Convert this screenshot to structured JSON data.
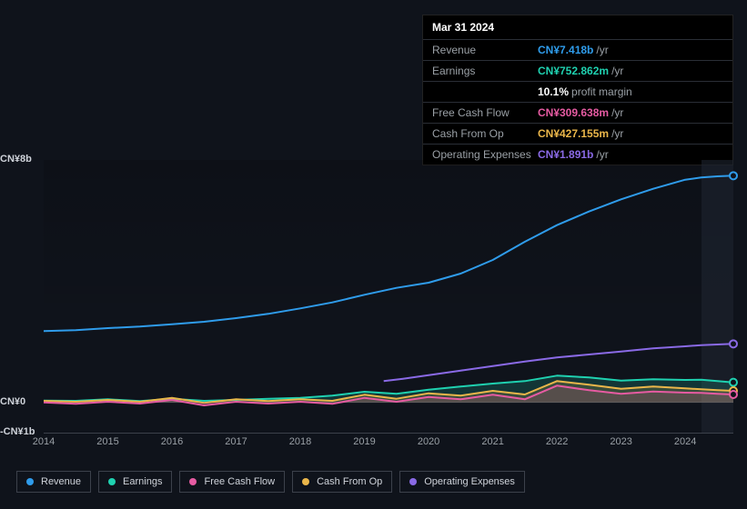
{
  "tooltip": {
    "date": "Mar 31 2024",
    "rows": [
      {
        "label": "Revenue",
        "value": "CN¥7.418b",
        "unit": "/yr",
        "color": "#2f9ceb"
      },
      {
        "label": "Earnings",
        "value": "CN¥752.862m",
        "unit": "/yr",
        "color": "#1fd1b0"
      },
      {
        "label": "",
        "value": "10.1%",
        "unit": "profit margin",
        "color": "#ffffff"
      },
      {
        "label": "Free Cash Flow",
        "value": "CN¥309.638m",
        "unit": "/yr",
        "color": "#e65ba2"
      },
      {
        "label": "Cash From Op",
        "value": "CN¥427.155m",
        "unit": "/yr",
        "color": "#eab64a"
      },
      {
        "label": "Operating Expenses",
        "value": "CN¥1.891b",
        "unit": "/yr",
        "color": "#8a6ae6"
      }
    ]
  },
  "chart": {
    "ymin": -1,
    "ymax": 8,
    "ylabels": [
      {
        "text": "CN¥8b",
        "val": 8
      },
      {
        "text": "CN¥0",
        "val": 0
      },
      {
        "text": "-CN¥1b",
        "val": -1
      }
    ],
    "xstart": 2014.0,
    "xend": 2024.75,
    "xticks": [
      2014,
      2015,
      2016,
      2017,
      2018,
      2019,
      2020,
      2021,
      2022,
      2023,
      2024
    ],
    "future_from": 2024.25,
    "background": "#0f131b",
    "grid_color": "#3c414b",
    "series": [
      {
        "name": "revenue",
        "label": "Revenue",
        "color": "#2f9ceb",
        "width": 2,
        "fill": false,
        "points": [
          [
            2014.0,
            2.35
          ],
          [
            2014.5,
            2.38
          ],
          [
            2015.0,
            2.45
          ],
          [
            2015.5,
            2.5
          ],
          [
            2016.0,
            2.58
          ],
          [
            2016.5,
            2.66
          ],
          [
            2017.0,
            2.78
          ],
          [
            2017.5,
            2.92
          ],
          [
            2018.0,
            3.1
          ],
          [
            2018.5,
            3.3
          ],
          [
            2019.0,
            3.55
          ],
          [
            2019.5,
            3.78
          ],
          [
            2020.0,
            3.95
          ],
          [
            2020.5,
            4.25
          ],
          [
            2021.0,
            4.7
          ],
          [
            2021.5,
            5.3
          ],
          [
            2022.0,
            5.85
          ],
          [
            2022.5,
            6.3
          ],
          [
            2023.0,
            6.7
          ],
          [
            2023.5,
            7.05
          ],
          [
            2024.0,
            7.35
          ],
          [
            2024.25,
            7.42
          ],
          [
            2024.5,
            7.46
          ],
          [
            2024.75,
            7.48
          ]
        ]
      },
      {
        "name": "opex",
        "label": "Operating Expenses",
        "color": "#8a6ae6",
        "width": 2,
        "fill": false,
        "points": [
          [
            2019.3,
            0.7
          ],
          [
            2019.6,
            0.78
          ],
          [
            2020.0,
            0.9
          ],
          [
            2020.5,
            1.05
          ],
          [
            2021.0,
            1.2
          ],
          [
            2021.5,
            1.35
          ],
          [
            2022.0,
            1.48
          ],
          [
            2022.5,
            1.58
          ],
          [
            2023.0,
            1.68
          ],
          [
            2023.5,
            1.78
          ],
          [
            2024.0,
            1.85
          ],
          [
            2024.25,
            1.89
          ],
          [
            2024.5,
            1.91
          ],
          [
            2024.75,
            1.93
          ]
        ]
      },
      {
        "name": "earnings",
        "label": "Earnings",
        "color": "#1fd1b0",
        "width": 2,
        "fill": true,
        "fillOpacity": 0.18,
        "points": [
          [
            2014.0,
            0.06
          ],
          [
            2014.5,
            0.05
          ],
          [
            2015.0,
            0.1
          ],
          [
            2015.5,
            0.04
          ],
          [
            2016.0,
            0.12
          ],
          [
            2016.5,
            0.05
          ],
          [
            2017.0,
            0.08
          ],
          [
            2017.5,
            0.12
          ],
          [
            2018.0,
            0.15
          ],
          [
            2018.5,
            0.22
          ],
          [
            2019.0,
            0.35
          ],
          [
            2019.5,
            0.28
          ],
          [
            2020.0,
            0.42
          ],
          [
            2020.5,
            0.52
          ],
          [
            2021.0,
            0.62
          ],
          [
            2021.5,
            0.7
          ],
          [
            2022.0,
            0.88
          ],
          [
            2022.5,
            0.82
          ],
          [
            2023.0,
            0.72
          ],
          [
            2023.5,
            0.76
          ],
          [
            2024.0,
            0.74
          ],
          [
            2024.25,
            0.75
          ],
          [
            2024.5,
            0.7
          ],
          [
            2024.75,
            0.66
          ]
        ]
      },
      {
        "name": "cashop",
        "label": "Cash From Op",
        "color": "#eab64a",
        "width": 2,
        "fill": true,
        "fillOpacity": 0.18,
        "points": [
          [
            2014.0,
            0.05
          ],
          [
            2014.5,
            0.02
          ],
          [
            2015.0,
            0.08
          ],
          [
            2015.5,
            0.02
          ],
          [
            2016.0,
            0.15
          ],
          [
            2016.5,
            -0.02
          ],
          [
            2017.0,
            0.1
          ],
          [
            2017.5,
            0.04
          ],
          [
            2018.0,
            0.1
          ],
          [
            2018.5,
            0.05
          ],
          [
            2019.0,
            0.25
          ],
          [
            2019.5,
            0.12
          ],
          [
            2020.0,
            0.3
          ],
          [
            2020.5,
            0.22
          ],
          [
            2021.0,
            0.38
          ],
          [
            2021.5,
            0.26
          ],
          [
            2022.0,
            0.7
          ],
          [
            2022.5,
            0.58
          ],
          [
            2023.0,
            0.45
          ],
          [
            2023.5,
            0.52
          ],
          [
            2024.0,
            0.46
          ],
          [
            2024.25,
            0.43
          ],
          [
            2024.5,
            0.4
          ],
          [
            2024.75,
            0.38
          ]
        ]
      },
      {
        "name": "fcf",
        "label": "Free Cash Flow",
        "color": "#e65ba2",
        "width": 2,
        "fill": true,
        "fillOpacity": 0.18,
        "points": [
          [
            2014.0,
            0.0
          ],
          [
            2014.5,
            -0.05
          ],
          [
            2015.0,
            0.02
          ],
          [
            2015.5,
            -0.04
          ],
          [
            2016.0,
            0.08
          ],
          [
            2016.5,
            -0.1
          ],
          [
            2017.0,
            0.02
          ],
          [
            2017.5,
            -0.04
          ],
          [
            2018.0,
            0.02
          ],
          [
            2018.5,
            -0.05
          ],
          [
            2019.0,
            0.15
          ],
          [
            2019.5,
            0.02
          ],
          [
            2020.0,
            0.18
          ],
          [
            2020.5,
            0.1
          ],
          [
            2021.0,
            0.25
          ],
          [
            2021.5,
            0.1
          ],
          [
            2022.0,
            0.55
          ],
          [
            2022.5,
            0.4
          ],
          [
            2023.0,
            0.28
          ],
          [
            2023.5,
            0.36
          ],
          [
            2024.0,
            0.32
          ],
          [
            2024.25,
            0.31
          ],
          [
            2024.5,
            0.28
          ],
          [
            2024.75,
            0.26
          ]
        ]
      }
    ]
  },
  "legend": [
    {
      "name": "revenue",
      "label": "Revenue",
      "color": "#2f9ceb"
    },
    {
      "name": "earnings",
      "label": "Earnings",
      "color": "#1fd1b0"
    },
    {
      "name": "fcf",
      "label": "Free Cash Flow",
      "color": "#e65ba2"
    },
    {
      "name": "cashop",
      "label": "Cash From Op",
      "color": "#eab64a"
    },
    {
      "name": "opex",
      "label": "Operating Expenses",
      "color": "#8a6ae6"
    }
  ]
}
